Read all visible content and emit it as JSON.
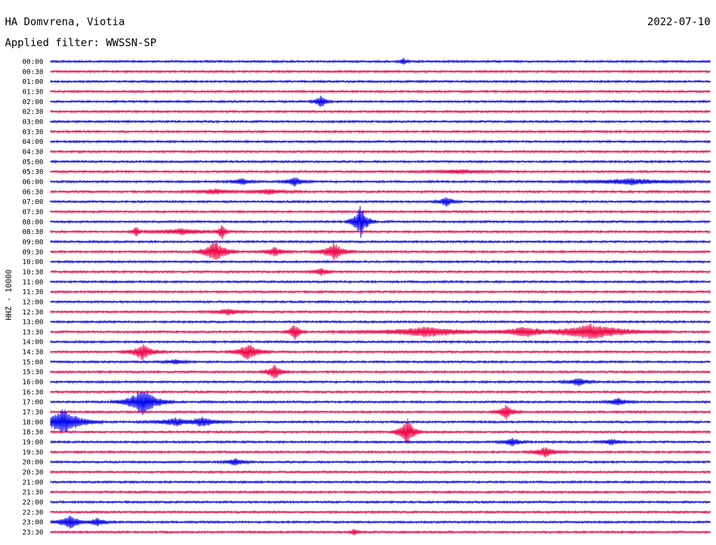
{
  "header": {
    "station": "HA Domvrena, Viotia",
    "date": "2022-07-10",
    "filter": "Applied filter: WWSSN-SP"
  },
  "axis": {
    "ylabel": "HHZ - 10000"
  },
  "colors": {
    "background": "#ffffff",
    "trace_even": "#0000ee",
    "trace_odd": "#ee0044",
    "text": "#000000"
  },
  "chart_data": {
    "type": "helicorder",
    "title": "HA Domvrena, Viotia",
    "subtitle": "Applied filter: WWSSN-SP",
    "ylabel": "HHZ - 10000",
    "rows": [
      {
        "label": "00:00",
        "events": [
          [
            0.535,
            0.35,
            0.004
          ]
        ]
      },
      {
        "label": "00:30",
        "events": []
      },
      {
        "label": "01:00",
        "events": []
      },
      {
        "label": "01:30",
        "events": []
      },
      {
        "label": "02:00",
        "events": [
          [
            0.41,
            0.7,
            0.006
          ]
        ]
      },
      {
        "label": "02:30",
        "events": []
      },
      {
        "label": "03:00",
        "events": []
      },
      {
        "label": "03:30",
        "events": []
      },
      {
        "label": "04:00",
        "events": []
      },
      {
        "label": "04:30",
        "events": []
      },
      {
        "label": "05:00",
        "events": []
      },
      {
        "label": "05:30",
        "events": [
          [
            0.62,
            0.2,
            0.03
          ]
        ]
      },
      {
        "label": "06:00",
        "events": [
          [
            0.29,
            0.35,
            0.01
          ],
          [
            0.37,
            0.45,
            0.01
          ],
          [
            0.88,
            0.3,
            0.04
          ]
        ]
      },
      {
        "label": "06:30",
        "events": [
          [
            0.25,
            0.25,
            0.02
          ],
          [
            0.33,
            0.25,
            0.02
          ]
        ]
      },
      {
        "label": "07:00",
        "events": [
          [
            0.6,
            0.5,
            0.008
          ]
        ]
      },
      {
        "label": "07:30",
        "events": []
      },
      {
        "label": "08:00",
        "events": [
          [
            0.47,
            1.7,
            0.008
          ]
        ]
      },
      {
        "label": "08:30",
        "events": [
          [
            0.13,
            0.6,
            0.004
          ],
          [
            0.26,
            1.0,
            0.004
          ],
          [
            0.2,
            0.3,
            0.03
          ]
        ]
      },
      {
        "label": "09:00",
        "events": []
      },
      {
        "label": "09:30",
        "events": [
          [
            0.25,
            1.2,
            0.012
          ],
          [
            0.34,
            0.5,
            0.01
          ],
          [
            0.43,
            0.9,
            0.012
          ]
        ]
      },
      {
        "label": "10:00",
        "events": []
      },
      {
        "label": "10:30",
        "events": [
          [
            0.41,
            0.4,
            0.008
          ]
        ]
      },
      {
        "label": "11:00",
        "events": []
      },
      {
        "label": "11:30",
        "events": []
      },
      {
        "label": "12:00",
        "events": []
      },
      {
        "label": "12:30",
        "events": [
          [
            0.27,
            0.3,
            0.015
          ]
        ]
      },
      {
        "label": "13:00",
        "events": []
      },
      {
        "label": "13:30",
        "events": [
          [
            0.37,
            0.9,
            0.006
          ],
          [
            0.57,
            0.5,
            0.05
          ],
          [
            0.72,
            0.5,
            0.03
          ],
          [
            0.82,
            0.8,
            0.04
          ]
        ]
      },
      {
        "label": "14:00",
        "events": []
      },
      {
        "label": "14:30",
        "events": [
          [
            0.14,
            0.8,
            0.012
          ],
          [
            0.3,
            0.9,
            0.012
          ]
        ]
      },
      {
        "label": "15:00",
        "events": [
          [
            0.19,
            0.25,
            0.01
          ]
        ]
      },
      {
        "label": "15:30",
        "events": [
          [
            0.34,
            0.8,
            0.008
          ]
        ]
      },
      {
        "label": "16:00",
        "events": [
          [
            0.8,
            0.45,
            0.01
          ]
        ]
      },
      {
        "label": "16:30",
        "events": []
      },
      {
        "label": "17:00",
        "events": [
          [
            0.14,
            1.5,
            0.016
          ],
          [
            0.86,
            0.4,
            0.01
          ]
        ]
      },
      {
        "label": "17:30",
        "events": [
          [
            0.69,
            0.8,
            0.008
          ]
        ]
      },
      {
        "label": "18:00",
        "events": [
          [
            0.02,
            1.4,
            0.02
          ],
          [
            0.19,
            0.4,
            0.02
          ],
          [
            0.23,
            0.5,
            0.016
          ]
        ]
      },
      {
        "label": "18:30",
        "events": [
          [
            0.54,
            1.6,
            0.008
          ]
        ]
      },
      {
        "label": "19:00",
        "events": [
          [
            0.7,
            0.4,
            0.01
          ],
          [
            0.85,
            0.3,
            0.01
          ]
        ]
      },
      {
        "label": "19:30",
        "events": [
          [
            0.75,
            0.5,
            0.012
          ]
        ]
      },
      {
        "label": "20:00",
        "events": [
          [
            0.28,
            0.35,
            0.01
          ]
        ]
      },
      {
        "label": "20:30",
        "events": []
      },
      {
        "label": "21:00",
        "events": []
      },
      {
        "label": "21:30",
        "events": []
      },
      {
        "label": "22:00",
        "events": []
      },
      {
        "label": "22:30",
        "events": []
      },
      {
        "label": "23:00",
        "events": [
          [
            0.03,
            0.7,
            0.012
          ],
          [
            0.07,
            0.4,
            0.01
          ]
        ]
      },
      {
        "label": "23:30",
        "events": [
          [
            0.46,
            0.4,
            0.004
          ]
        ]
      }
    ]
  }
}
